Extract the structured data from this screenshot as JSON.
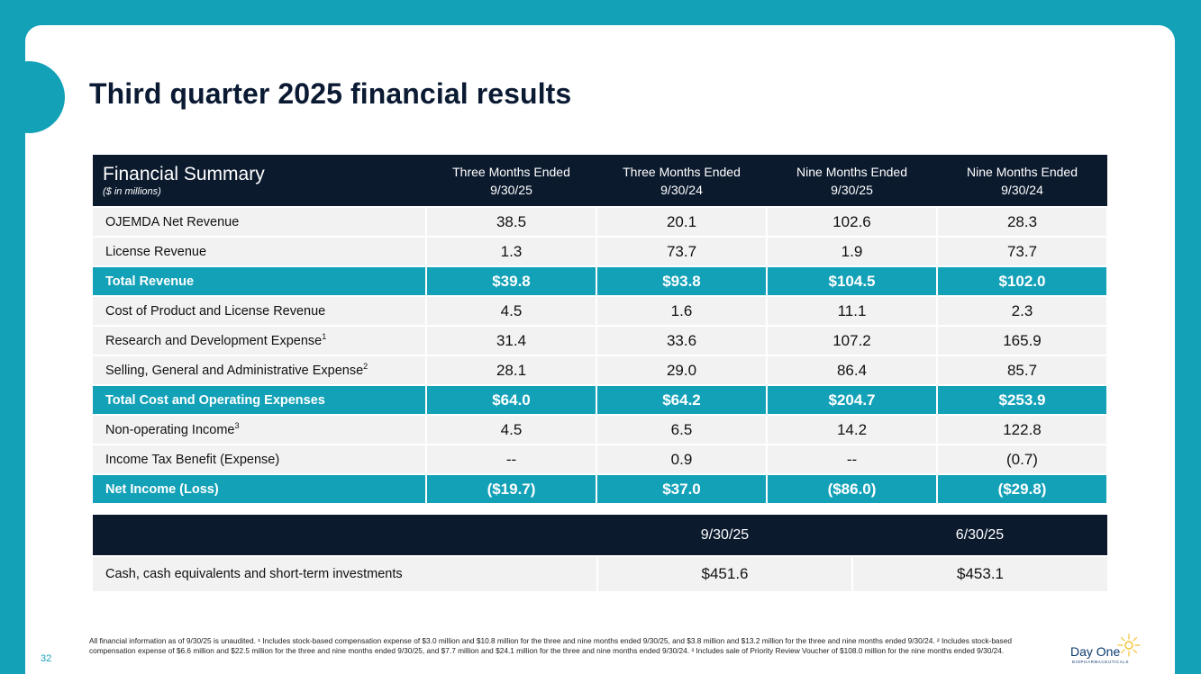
{
  "title": "Third quarter 2025 financial results",
  "page_number": "32",
  "summary_table": {
    "header_title": "Financial Summary",
    "header_subtitle": "($ in millions)",
    "columns": [
      {
        "line1": "Three Months Ended",
        "line2": "9/30/25"
      },
      {
        "line1": "Three Months Ended",
        "line2": "9/30/24"
      },
      {
        "line1": "Nine Months Ended",
        "line2": "9/30/25"
      },
      {
        "line1": "Nine Months Ended",
        "line2": "9/30/24"
      }
    ],
    "rows": [
      {
        "label": "OJEMDA Net Revenue",
        "sup": "",
        "total": false,
        "values": [
          "38.5",
          "20.1",
          "102.6",
          "28.3"
        ]
      },
      {
        "label": "License Revenue",
        "sup": "",
        "total": false,
        "values": [
          "1.3",
          "73.7",
          "1.9",
          "73.7"
        ]
      },
      {
        "label": "Total Revenue",
        "sup": "",
        "total": true,
        "values": [
          "$39.8",
          "$93.8",
          "$104.5",
          "$102.0"
        ]
      },
      {
        "label": "Cost of Product and License Revenue",
        "sup": "",
        "total": false,
        "values": [
          "4.5",
          "1.6",
          "11.1",
          "2.3"
        ]
      },
      {
        "label": "Research and Development Expense",
        "sup": "1",
        "total": false,
        "values": [
          "31.4",
          "33.6",
          "107.2",
          "165.9"
        ]
      },
      {
        "label": "Selling, General and Administrative Expense",
        "sup": "2",
        "total": false,
        "values": [
          "28.1",
          "29.0",
          "86.4",
          "85.7"
        ]
      },
      {
        "label": "Total Cost and Operating Expenses",
        "sup": "",
        "total": true,
        "values": [
          "$64.0",
          "$64.2",
          "$204.7",
          "$253.9"
        ]
      },
      {
        "label": "Non-operating Income",
        "sup": "3",
        "total": false,
        "values": [
          "4.5",
          "6.5",
          "14.2",
          "122.8"
        ]
      },
      {
        "label": "Income Tax Benefit (Expense)",
        "sup": "",
        "total": false,
        "values": [
          "--",
          "0.9",
          "--",
          "(0.7)"
        ]
      },
      {
        "label": "Net Income (Loss)",
        "sup": "",
        "total": true,
        "values": [
          "($19.7)",
          "$37.0",
          "($86.0)",
          "($29.8)"
        ]
      }
    ]
  },
  "cash_table": {
    "columns": [
      "9/30/25",
      "6/30/25"
    ],
    "row_label": "Cash, cash equivalents and short-term investments",
    "values": [
      "$451.6",
      "$453.1"
    ]
  },
  "footnote": "All financial information as of 9/30/25 is unaudited. ¹ Includes stock-based compensation expense of $3.0 million and $10.8 million for the three and nine months ended 9/30/25, and $3.8 million and $13.2 million for the three and nine months ended 9/30/24. ² Includes stock-based compensation expense of $6.6 million and $22.5 million for the three and nine months ended 9/30/25, and $7.7 million and $24.1 million for the three and nine months ended 9/30/24. ³ Includes sale of Priority Review Voucher of $108.0 million for the nine months ended 9/30/24.",
  "logo": {
    "name": "Day One",
    "tagline": "BIOPHARMACEUTICALS"
  },
  "colors": {
    "accent": "#13a1b8",
    "header_navy": "#0c1a2e",
    "row_gray": "#f2f2f2",
    "logo_sun": "#f2c12e"
  }
}
